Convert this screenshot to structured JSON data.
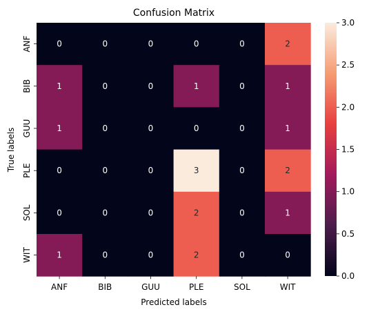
{
  "chart_data": {
    "type": "heatmap",
    "title": "Confusion Matrix",
    "xlabel": "Predicted labels",
    "ylabel": "True labels",
    "x_categories": [
      "ANF",
      "BIB",
      "GUU",
      "PLE",
      "SOL",
      "WIT"
    ],
    "y_categories": [
      "ANF",
      "BIB",
      "GUU",
      "PLE",
      "SOL",
      "WIT"
    ],
    "values": [
      [
        0,
        0,
        0,
        0,
        0,
        2
      ],
      [
        1,
        0,
        0,
        1,
        0,
        1
      ],
      [
        1,
        0,
        0,
        0,
        0,
        1
      ],
      [
        0,
        0,
        0,
        3,
        0,
        2
      ],
      [
        0,
        0,
        0,
        2,
        0,
        1
      ],
      [
        1,
        0,
        0,
        2,
        0,
        0
      ]
    ],
    "colorbar": {
      "range": [
        0,
        3
      ],
      "ticks": [
        "0.0",
        "0.5",
        "1.0",
        "1.5",
        "2.0",
        "2.5",
        "3.0"
      ],
      "colormap": "rocket",
      "colors": [
        "#03051a",
        "#4c1d4b",
        "#a11a5b",
        "#e83f3f",
        "#f69c73",
        "#faebdd"
      ]
    }
  }
}
